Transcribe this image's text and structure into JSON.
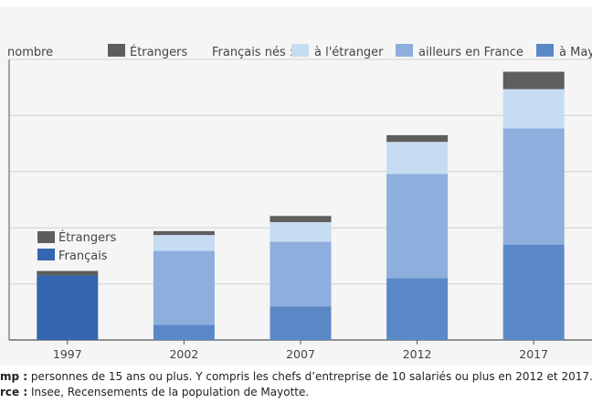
{
  "chart_data": {
    "type": "bar",
    "stacked": true,
    "unit_label": "nombre",
    "categories": [
      "1997",
      "2002",
      "2007",
      "2012",
      "2017"
    ],
    "legend": {
      "etrangers": "Étrangers",
      "group_label": "Français nés :",
      "abroad": "à l'étranger",
      "elsewhere": "ailleurs en France",
      "mayotte": "à Mayotte"
    },
    "inset_legend": {
      "etrangers": "Étrangers",
      "francais": "Français"
    },
    "series": [
      {
        "key": "francais_1997",
        "name": "Français",
        "color": "#3566b0",
        "values": [
          11500,
          null,
          null,
          null,
          null
        ]
      },
      {
        "key": "mayotte",
        "name": "à Mayotte",
        "color": "#5b89c7",
        "values": [
          null,
          2700,
          6000,
          11000,
          17000
        ]
      },
      {
        "key": "elsewhere",
        "name": "ailleurs en France",
        "color": "#8eaedd",
        "values": [
          null,
          13200,
          11500,
          18600,
          20700
        ]
      },
      {
        "key": "abroad",
        "name": "à l'étranger",
        "color": "#c6dcf2",
        "values": [
          null,
          2800,
          3500,
          5700,
          7000
        ]
      },
      {
        "key": "etrangers",
        "name": "Étrangers",
        "color": "#5e5e5e",
        "values": [
          800,
          700,
          1100,
          1200,
          3100
        ]
      }
    ],
    "ylim": [
      0,
      50000
    ],
    "yticks": [
      0,
      10000,
      20000,
      30000,
      40000,
      50000
    ],
    "grid": true
  },
  "notes": {
    "scope_label": "mp :",
    "scope_text": " personnes de 15 ans ou plus. Y compris les chefs d’entreprise de 10 salariés ou plus en 2012 et 2017.",
    "source_label": "rce :",
    "source_text": " Insee, Recensements de la population de Mayotte."
  }
}
